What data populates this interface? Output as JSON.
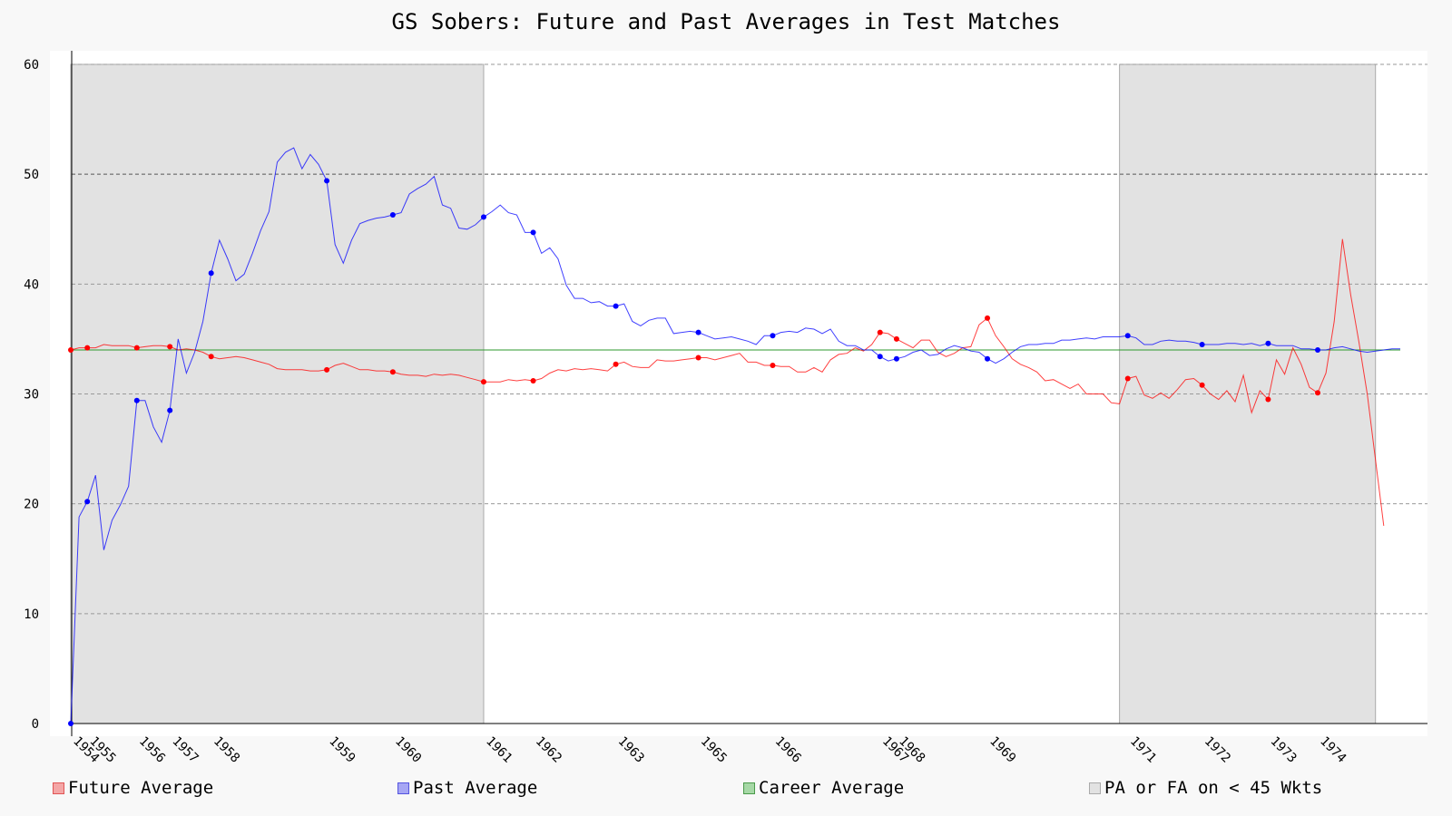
{
  "chart_data": {
    "type": "line",
    "title": "GS Sobers: Future and Past Averages in Test Matches",
    "ylim": [
      0,
      60
    ],
    "yticks": [
      0,
      10,
      20,
      30,
      40,
      50,
      60
    ],
    "grid": true,
    "career_average": 34.0,
    "x_count": 162,
    "year_ticks": [
      {
        "idx": 0,
        "label": "1954"
      },
      {
        "idx": 2,
        "label": "1955"
      },
      {
        "idx": 8,
        "label": "1956"
      },
      {
        "idx": 12,
        "label": "1957"
      },
      {
        "idx": 17,
        "label": "1958"
      },
      {
        "idx": 31,
        "label": "1959"
      },
      {
        "idx": 39,
        "label": "1960"
      },
      {
        "idx": 50,
        "label": "1961"
      },
      {
        "idx": 56,
        "label": "1962"
      },
      {
        "idx": 66,
        "label": "1963"
      },
      {
        "idx": 76,
        "label": "1965"
      },
      {
        "idx": 85,
        "label": "1966"
      },
      {
        "idx": 98,
        "label": "1967"
      },
      {
        "idx": 100,
        "label": "1968"
      },
      {
        "idx": 111,
        "label": "1969"
      },
      {
        "idx": 128,
        "label": "1971"
      },
      {
        "idx": 137,
        "label": "1972"
      },
      {
        "idx": 145,
        "label": "1973"
      },
      {
        "idx": 151,
        "label": "1974"
      }
    ],
    "shaded_regions": [
      {
        "from": 0,
        "to": 50
      },
      {
        "from": 127,
        "to": 158
      }
    ],
    "series": [
      {
        "name": "Future Average",
        "color": "#ff0000",
        "values": [
          34.0,
          34.2,
          34.2,
          34.2,
          34.5,
          34.4,
          34.4,
          34.4,
          34.2,
          34.3,
          34.4,
          34.4,
          34.3,
          34.0,
          34.1,
          34.0,
          33.8,
          33.4,
          33.2,
          33.3,
          33.4,
          33.3,
          33.1,
          32.9,
          32.7,
          32.3,
          32.2,
          32.2,
          32.2,
          32.1,
          32.1,
          32.2,
          32.6,
          32.8,
          32.5,
          32.2,
          32.2,
          32.1,
          32.1,
          32.0,
          31.8,
          31.7,
          31.7,
          31.6,
          31.8,
          31.7,
          31.8,
          31.7,
          31.5,
          31.3,
          31.1,
          31.1,
          31.1,
          31.3,
          31.2,
          31.3,
          31.2,
          31.4,
          31.9,
          32.2,
          32.1,
          32.3,
          32.2,
          32.3,
          32.2,
          32.1,
          32.7,
          32.9,
          32.5,
          32.4,
          32.4,
          33.1,
          33.0,
          33.0,
          33.1,
          33.2,
          33.3,
          33.3,
          33.1,
          33.3,
          33.5,
          33.7,
          32.9,
          32.9,
          32.6,
          32.6,
          32.5,
          32.5,
          32.0,
          32.0,
          32.4,
          32.0,
          33.1,
          33.6,
          33.7,
          34.2,
          33.9,
          34.5,
          35.6,
          35.5,
          35.0,
          34.6,
          34.2,
          34.9,
          34.9,
          33.8,
          33.4,
          33.7,
          34.2,
          34.3,
          36.3,
          36.9,
          35.3,
          34.3,
          33.2,
          32.7,
          32.4,
          32.0,
          31.2,
          31.3,
          30.9,
          30.5,
          30.9,
          30.0,
          30.0,
          30.0,
          29.2,
          29.1,
          31.4,
          31.6,
          29.9,
          29.6,
          30.1,
          29.6,
          30.4,
          31.3,
          31.4,
          30.8,
          30.0,
          29.5,
          30.3,
          29.3,
          31.7,
          28.3,
          30.3,
          29.5,
          33.1,
          31.8,
          34.2,
          32.7,
          30.6,
          30.1,
          31.9,
          36.6,
          44.1,
          39.0,
          34.7,
          30.0,
          24.0,
          18.0
        ],
        "marker_idx": [
          0,
          2,
          8,
          12,
          17,
          31,
          39,
          50,
          56,
          66,
          76,
          85,
          98,
          100,
          111,
          128,
          137,
          145,
          151
        ]
      },
      {
        "name": "Past Average",
        "color": "#0000ff",
        "values": [
          0,
          18.8,
          20.2,
          22.6,
          15.8,
          18.5,
          19.9,
          21.6,
          29.4,
          29.4,
          27.0,
          25.6,
          28.5,
          35.0,
          31.9,
          33.8,
          36.6,
          41.0,
          44.0,
          42.3,
          40.3,
          40.9,
          42.8,
          44.9,
          46.6,
          51.1,
          52.0,
          52.4,
          50.5,
          51.8,
          50.9,
          49.4,
          43.6,
          41.9,
          44.0,
          45.5,
          45.8,
          46.0,
          46.1,
          46.3,
          46.5,
          48.2,
          48.7,
          49.1,
          49.8,
          47.2,
          46.9,
          45.1,
          45.0,
          45.4,
          46.1,
          46.6,
          47.2,
          46.5,
          46.3,
          44.7,
          44.7,
          42.8,
          43.3,
          42.3,
          39.9,
          38.7,
          38.7,
          38.3,
          38.4,
          38.0,
          38.0,
          38.2,
          36.6,
          36.2,
          36.7,
          36.9,
          36.9,
          35.5,
          35.6,
          35.7,
          35.6,
          35.3,
          35.0,
          35.1,
          35.2,
          35.0,
          34.8,
          34.5,
          35.3,
          35.3,
          35.6,
          35.7,
          35.6,
          36.0,
          35.9,
          35.5,
          35.9,
          34.8,
          34.4,
          34.4,
          34.0,
          34.0,
          33.4,
          33.0,
          33.2,
          33.4,
          33.8,
          34.0,
          33.5,
          33.6,
          34.1,
          34.4,
          34.2,
          33.9,
          33.8,
          33.2,
          32.8,
          33.2,
          33.8,
          34.3,
          34.5,
          34.5,
          34.6,
          34.6,
          34.9,
          34.9,
          35.0,
          35.1,
          35.0,
          35.2,
          35.2,
          35.2,
          35.3,
          35.1,
          34.5,
          34.5,
          34.8,
          34.9,
          34.8,
          34.8,
          34.7,
          34.5,
          34.5,
          34.5,
          34.6,
          34.6,
          34.5,
          34.6,
          34.4,
          34.6,
          34.4,
          34.4,
          34.4,
          34.1,
          34.1,
          34.0,
          34.0,
          34.2,
          34.3,
          34.1,
          33.9,
          33.8,
          33.9,
          34.0,
          34.1,
          34.1
        ],
        "marker_idx": [
          0,
          2,
          8,
          12,
          17,
          31,
          39,
          50,
          56,
          66,
          76,
          85,
          98,
          100,
          111,
          128,
          137,
          145,
          151
        ]
      }
    ],
    "legend": {
      "position": "bottom",
      "items": [
        {
          "label": "Future Average",
          "fill": "#f4a6a6",
          "stroke": "#e05555"
        },
        {
          "label": "Past Average",
          "fill": "#a6a6f4",
          "stroke": "#5555e0"
        },
        {
          "label": "Career Average",
          "fill": "#a6d8a6",
          "stroke": "#4a9a4a"
        },
        {
          "label": "PA or FA on < 45 Wkts",
          "fill": "#e2e2e2",
          "stroke": "#aaaaaa"
        }
      ]
    }
  }
}
